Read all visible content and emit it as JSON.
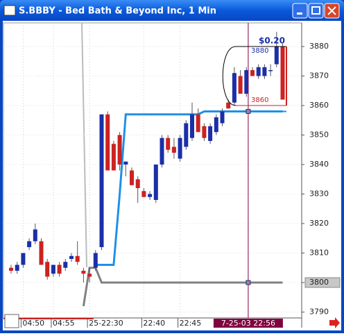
{
  "window": {
    "title": "S.BBBY - Bed Bath & Beyond Inc, 1 Min"
  },
  "chart_data": {
    "type": "candlestick",
    "categories": [
      null,
      null,
      "04:50",
      null,
      null,
      null,
      null,
      "04:55",
      null,
      null,
      null,
      null,
      null,
      "25-22:30",
      null,
      null,
      null,
      null,
      null,
      null,
      null,
      null,
      "22:40",
      null,
      null,
      null,
      null,
      null,
      "22:45",
      null,
      null,
      null,
      null,
      null,
      null,
      null,
      null,
      null,
      null,
      null,
      null,
      null,
      null,
      null,
      null,
      null
    ],
    "open": [
      3805,
      3804,
      3806,
      3812,
      3814,
      3814,
      3807,
      3803,
      3806,
      3805,
      3808,
      3809,
      3804,
      3803,
      3805,
      3812,
      3857,
      3847,
      3850,
      3840,
      3838,
      3835,
      3831,
      3829,
      3828,
      3840,
      3849,
      3846,
      3842,
      3846,
      3849,
      3857,
      3853,
      3848,
      3851,
      3854,
      3861,
      3861,
      3870,
      3864,
      3872,
      3870,
      3870,
      3872,
      3874,
      3880
    ],
    "high": [
      3806,
      3807,
      3810,
      3815,
      3820,
      3815,
      3808,
      3806,
      3807,
      3808,
      3810,
      3814,
      3805,
      3805,
      3811,
      3857,
      3858,
      3848,
      3851,
      3841,
      3839,
      3836,
      3832,
      3831,
      3840,
      3850,
      3850,
      3849,
      3850,
      3855,
      3861,
      3859,
      3854,
      3854,
      3857,
      3859,
      3862,
      3873,
      3872,
      3873,
      3873,
      3874,
      3874,
      3874,
      3885,
      3881
    ],
    "low": [
      3803,
      3803,
      3805,
      3811,
      3813,
      3806,
      3801,
      3802,
      3802,
      3804,
      3807,
      3806,
      3800,
      3800,
      3804,
      3811,
      3838,
      3838,
      3838,
      3836,
      3833,
      3827,
      3829,
      3828,
      3827,
      3839,
      3844,
      3842,
      3841,
      3845,
      3848,
      3851,
      3848,
      3847,
      3850,
      3853,
      3859,
      3860,
      3864,
      3863,
      3870,
      3869,
      3869,
      3870,
      3873,
      3862
    ],
    "close": [
      3804,
      3806,
      3810,
      3814,
      3818,
      3806,
      3802,
      3806,
      3803,
      3807,
      3809,
      3807,
      3803,
      3802,
      3810,
      3857,
      3838,
      3838,
      3840,
      3841,
      3833,
      3832,
      3829,
      3830,
      3840,
      3849,
      3845,
      3844,
      3849,
      3854,
      3857,
      3851,
      3849,
      3853,
      3856,
      3858,
      3859,
      3871,
      3864,
      3872,
      3870,
      3873,
      3873,
      3872,
      3880,
      3862
    ],
    "up_color": "#1a2fa8",
    "down_color": "#cc2222",
    "lines": [
      {
        "color": "#1e90e8",
        "values": [
          null,
          null,
          null,
          null,
          null,
          null,
          null,
          null,
          null,
          null,
          null,
          null,
          null,
          null,
          3806,
          3806,
          3806,
          3806,
          3830,
          3857,
          3857,
          3857,
          3857,
          3857,
          3857,
          3857,
          3857,
          3857,
          3857,
          3857,
          3857,
          3857,
          3858,
          3858,
          3858,
          3858,
          3858,
          3858,
          3858,
          3858,
          3858,
          3858,
          3858,
          3858,
          3858,
          3858
        ]
      },
      {
        "color": "#808080",
        "values": [
          null,
          null,
          null,
          null,
          null,
          null,
          null,
          null,
          null,
          null,
          null,
          null,
          3792,
          3805,
          3805,
          3800,
          3800,
          3800,
          3800,
          3800,
          3800,
          3800,
          3800,
          3800,
          3800,
          3800,
          3800,
          3800,
          3800,
          3800,
          3800,
          3800,
          3800,
          3800,
          3800,
          3800,
          3800,
          3800,
          3800,
          3800,
          3800,
          3800,
          3800,
          3800,
          3800,
          3800
        ]
      }
    ],
    "ylim": [
      3788,
      3888
    ],
    "yticks": [
      3790,
      3800,
      3810,
      3820,
      3830,
      3840,
      3850,
      3860,
      3870,
      3880
    ],
    "crosshair": {
      "label": "7-25-03 22:56",
      "price": 3858
    },
    "measure": {
      "label": "$0.20",
      "top": 3880,
      "bottom": 3860
    }
  }
}
